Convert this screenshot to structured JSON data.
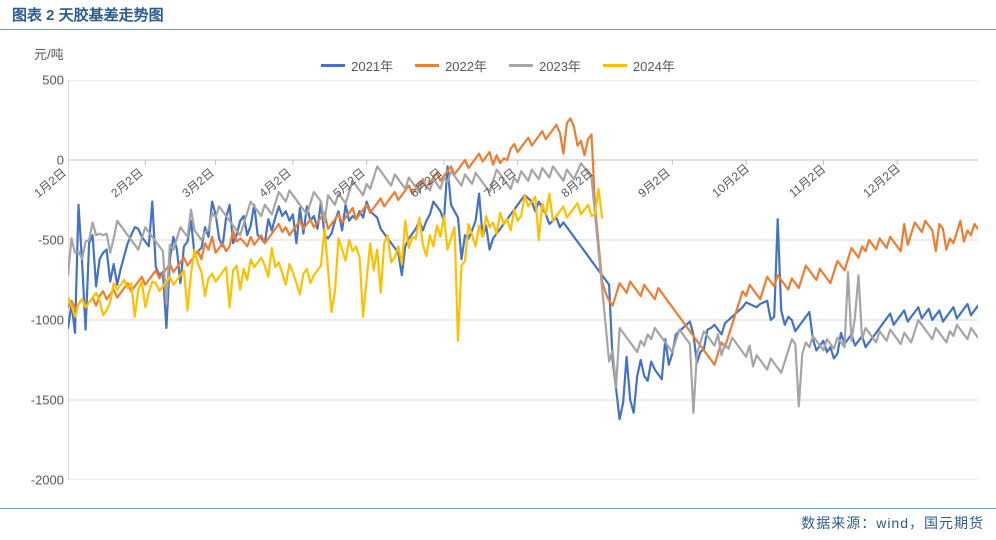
{
  "title": "图表 2 天胶基差走势图",
  "source": "数据来源：wind，国元期货",
  "chart": {
    "type": "line",
    "y_unit": "元/吨",
    "background_color": "#ffffff",
    "grid_color": "#d9d9d9",
    "axis_color": "#bfbfbf",
    "tick_font_color": "#595959",
    "title_color": "#2e5c8a",
    "border_color": "#7f9db9",
    "ylim": [
      -2000,
      500
    ],
    "yticks": [
      -2000,
      -1500,
      -1000,
      -500,
      0,
      500
    ],
    "xticks_labels": [
      "1月2日",
      "2月2日",
      "3月2日",
      "4月2日",
      "5月2日",
      "6月2日",
      "7月2日",
      "8月2日",
      "9月2日",
      "10月2日",
      "11月2日",
      "12月2日"
    ],
    "xticks_pos": [
      0,
      22,
      42,
      64,
      85,
      107,
      128,
      150,
      172,
      193,
      215,
      236
    ],
    "n_points": 260,
    "line_width": 2.2,
    "legend_position": "top-center",
    "series": [
      {
        "name": "2021年",
        "color": "#4472c4",
        "data": [
          -1050,
          -900,
          -1080,
          -280,
          -640,
          -1060,
          -520,
          -470,
          -790,
          -620,
          -580,
          -560,
          -760,
          -650,
          -780,
          -680,
          -600,
          -520,
          -470,
          -420,
          -430,
          -480,
          -510,
          -540,
          -260,
          -670,
          -720,
          -700,
          -1050,
          -620,
          -480,
          -560,
          -770,
          -540,
          -510,
          -380,
          -590,
          -570,
          -550,
          -420,
          -480,
          -260,
          -340,
          -490,
          -540,
          -360,
          -280,
          -520,
          -470,
          -380,
          -350,
          -470,
          -410,
          -280,
          -470,
          -490,
          -520,
          -370,
          -440,
          -360,
          -290,
          -350,
          -320,
          -380,
          -340,
          -520,
          -300,
          -460,
          -290,
          -380,
          -350,
          -430,
          -260,
          -470,
          -490,
          -460,
          -380,
          -320,
          -440,
          -280,
          -380,
          -350,
          -370,
          -320,
          -360,
          -260,
          -320,
          -340,
          -360,
          -430,
          -460,
          -490,
          -520,
          -550,
          -580,
          -720,
          -540,
          -490,
          -460,
          -430,
          -380,
          -440,
          -380,
          -340,
          -260,
          -290,
          -320,
          -380,
          -40,
          -280,
          -320,
          -360,
          -620,
          -470,
          -490,
          -440,
          -380,
          -210,
          -480,
          -410,
          -560,
          -490,
          -460,
          -430,
          -400,
          -370,
          -340,
          -310,
          -280,
          -250,
          -220,
          -240,
          -260,
          -320,
          -260,
          -300,
          -340,
          -400,
          -380,
          -360,
          -420,
          -390,
          -420,
          -450,
          -480,
          -510,
          -540,
          -570,
          -600,
          -630,
          -660,
          -690,
          -720,
          -750,
          -780,
          -1250,
          -1430,
          -1620,
          -1520,
          -1230,
          -1500,
          -1580,
          -1350,
          -1250,
          -1350,
          -1380,
          -1260,
          -1310,
          -1340,
          -1370,
          -1120,
          -1280,
          -1210,
          -1090,
          -1070,
          -1050,
          -1030,
          -1010,
          -1090,
          -1270,
          -1200,
          -1180,
          -1060,
          -1050,
          -1030,
          -1060,
          -1090,
          -1020,
          -1000,
          -980,
          -960,
          -940,
          -920,
          -890,
          -900,
          -910,
          -920,
          -900,
          -890,
          -880,
          -1000,
          -980,
          -370,
          -940,
          -1030,
          -980,
          -1000,
          -1070,
          -1040,
          -1010,
          -980,
          -950,
          -1120,
          -1190,
          -1160,
          -1130,
          -1200,
          -1170,
          -1240,
          -1210,
          -1080,
          -1150,
          -1120,
          -1090,
          -1160,
          -1130,
          -1100,
          -1170,
          -1140,
          -1110,
          -1080,
          -1050,
          -1020,
          -990,
          -960,
          -1030,
          -1000,
          -970,
          -940,
          -1010,
          -980,
          -950,
          -920,
          -990,
          -960,
          -930,
          -1000,
          -970,
          -940,
          -1010,
          -980,
          -950,
          -920,
          -990,
          -960,
          -930,
          -900,
          -970,
          -940,
          -910,
          -980
        ]
      },
      {
        "name": "2022年",
        "color": "#ed7d31",
        "data": [
          -920,
          -880,
          -930,
          -900,
          -870,
          -920,
          -890,
          -860,
          -910,
          -850,
          -820,
          -870,
          -840,
          -810,
          -860,
          -830,
          -800,
          -770,
          -820,
          -790,
          -760,
          -730,
          -780,
          -750,
          -720,
          -690,
          -740,
          -710,
          -680,
          -650,
          -700,
          -670,
          -640,
          -610,
          -660,
          -630,
          -600,
          -570,
          -620,
          -520,
          -560,
          -480,
          -580,
          -550,
          -520,
          -570,
          -540,
          -440,
          -510,
          -490,
          -510,
          -540,
          -480,
          -530,
          -500,
          -470,
          -520,
          -490,
          -460,
          -430,
          -400,
          -450,
          -420,
          -470,
          -440,
          -410,
          -380,
          -430,
          -400,
          -370,
          -420,
          -390,
          -360,
          -330,
          -430,
          -400,
          -370,
          -340,
          -390,
          -360,
          -330,
          -300,
          -370,
          -340,
          -310,
          -280,
          -330,
          -300,
          -270,
          -240,
          -290,
          -260,
          -230,
          -200,
          -250,
          -220,
          -190,
          -160,
          -210,
          -180,
          -150,
          -120,
          -170,
          -140,
          -110,
          -80,
          -130,
          -100,
          -70,
          -40,
          -90,
          -60,
          -30,
          0,
          -50,
          -20,
          10,
          40,
          -10,
          20,
          50,
          -30,
          30,
          -20,
          10,
          0,
          70,
          100,
          50,
          80,
          110,
          140,
          90,
          120,
          150,
          180,
          130,
          160,
          190,
          220,
          170,
          40,
          230,
          260,
          210,
          90,
          120,
          30,
          130,
          160,
          -280,
          -520,
          -760,
          -830,
          -880,
          -910,
          -840,
          -770,
          -800,
          -830,
          -760,
          -790,
          -820,
          -850,
          -780,
          -810,
          -840,
          -870,
          -800,
          -830,
          -860,
          -890,
          -920,
          -950,
          -980,
          -1010,
          -1040,
          -1070,
          -1100,
          -1130,
          -1160,
          -1190,
          -1220,
          -1250,
          -1280,
          -1210,
          -1140,
          -1170,
          -1100,
          -1030,
          -960,
          -890,
          -820,
          -850,
          -780,
          -810,
          -840,
          -870,
          -800,
          -730,
          -760,
          -790,
          -720,
          -750,
          -780,
          -810,
          -740,
          -770,
          -800,
          -730,
          -660,
          -690,
          -720,
          -750,
          -680,
          -710,
          -740,
          -770,
          -700,
          -630,
          -660,
          -690,
          -620,
          -550,
          -580,
          -610,
          -540,
          -570,
          -500,
          -530,
          -560,
          -490,
          -520,
          -550,
          -480,
          -510,
          -540,
          -570,
          -400,
          -530,
          -460,
          -390,
          -420,
          -450,
          -380,
          -410,
          -440,
          -570,
          -400,
          -430,
          -560,
          -490,
          -520,
          -450,
          -380,
          -510,
          -440,
          -470,
          -400,
          -430,
          -460
        ]
      },
      {
        "name": "2023年",
        "color": "#a5a5a5",
        "data": [
          -720,
          -490,
          -580,
          -570,
          -620,
          -510,
          -500,
          -390,
          -470,
          -460,
          -470,
          -460,
          -580,
          -490,
          -380,
          -410,
          -440,
          -470,
          -500,
          -530,
          -560,
          -490,
          -420,
          -450,
          -480,
          -510,
          -540,
          -570,
          -900,
          -530,
          -560,
          -490,
          -420,
          -450,
          -480,
          -310,
          -440,
          -470,
          -500,
          -450,
          -440,
          -330,
          -360,
          -290,
          -320,
          -350,
          -380,
          -410,
          -440,
          -470,
          -400,
          -330,
          -260,
          -290,
          -320,
          -350,
          -280,
          -310,
          -340,
          -270,
          -200,
          -230,
          -260,
          -190,
          -220,
          -250,
          -280,
          -310,
          -340,
          -270,
          -200,
          -230,
          -260,
          -390,
          -220,
          -250,
          -280,
          -210,
          -240,
          -270,
          -200,
          -130,
          -160,
          -190,
          -220,
          -150,
          -180,
          -110,
          -40,
          -70,
          -100,
          -130,
          -160,
          -90,
          -120,
          -150,
          -180,
          -110,
          -140,
          -170,
          -200,
          -130,
          -160,
          -190,
          -120,
          -150,
          -180,
          -110,
          -140,
          -70,
          -100,
          -130,
          -160,
          -90,
          -120,
          -150,
          -80,
          -110,
          -140,
          -170,
          -200,
          -130,
          -60,
          -90,
          -120,
          -150,
          -180,
          -110,
          -140,
          -70,
          -100,
          -130,
          -60,
          -90,
          -120,
          -50,
          -80,
          -110,
          -40,
          -70,
          -100,
          -130,
          -60,
          -90,
          -120,
          -70,
          -20,
          -50,
          -80,
          -110,
          -340,
          -570,
          -800,
          -1030,
          -1260,
          -1190,
          -1420,
          -1050,
          -1080,
          -1110,
          -1140,
          -1170,
          -1200,
          -1130,
          -1160,
          -1090,
          -1120,
          -1050,
          -1080,
          -1110,
          -1140,
          -1170,
          -1200,
          -1130,
          -1060,
          -1090,
          -1120,
          -1150,
          -1580,
          -1210,
          -1140,
          -1070,
          -1100,
          -1130,
          -1160,
          -1090,
          -1220,
          -1150,
          -1180,
          -1110,
          -1140,
          -1170,
          -1200,
          -1230,
          -1160,
          -1290,
          -1220,
          -1250,
          -1280,
          -1310,
          -1240,
          -1270,
          -1300,
          -1330,
          -1260,
          -1190,
          -1120,
          -1150,
          -1540,
          -1210,
          -1140,
          -1170,
          -1100,
          -1130,
          -1160,
          -1190,
          -1120,
          -1150,
          -1180,
          -1110,
          -1140,
          -1170,
          -700,
          -1130,
          -980,
          -720,
          -1120,
          -1050,
          -1080,
          -1110,
          -1140,
          -1070,
          -1100,
          -1130,
          -1060,
          -1090,
          -1120,
          -1150,
          -1080,
          -1110,
          -1140,
          -1070,
          -1000,
          -1030,
          -1060,
          -1090,
          -1120,
          -1050,
          -1080,
          -1110,
          -1140,
          -1070,
          -1100,
          -1030,
          -1060,
          -1090,
          -1120,
          -1050,
          -1080,
          -1110
        ]
      },
      {
        "name": "2024年",
        "color": "#ffc000",
        "data": [
          -860,
          -910,
          -980,
          -900,
          -870,
          -920,
          -890,
          -860,
          -830,
          -880,
          -970,
          -940,
          -890,
          -770,
          -810,
          -780,
          -750,
          -800,
          -770,
          -980,
          -810,
          -760,
          -920,
          -830,
          -760,
          -770,
          -820,
          -790,
          -760,
          -730,
          -780,
          -750,
          -720,
          -690,
          -940,
          -710,
          -560,
          -650,
          -700,
          -850,
          -740,
          -710,
          -760,
          -730,
          -700,
          -670,
          -920,
          -690,
          -660,
          -810,
          -680,
          -750,
          -620,
          -670,
          -640,
          -610,
          -660,
          -730,
          -550,
          -670,
          -640,
          -710,
          -780,
          -650,
          -700,
          -770,
          -840,
          -710,
          -680,
          -770,
          -720,
          -690,
          -660,
          -430,
          -680,
          -950,
          -820,
          -490,
          -560,
          -630,
          -500,
          -570,
          -540,
          -610,
          -980,
          -750,
          -520,
          -690,
          -560,
          -830,
          -520,
          -470,
          -640,
          -610,
          -540,
          -650,
          -380,
          -550,
          -480,
          -490,
          -360,
          -530,
          -600,
          -470,
          -540,
          -410,
          -480,
          -350,
          -560,
          -490,
          -420,
          -1130,
          -660,
          -630,
          -400,
          -470,
          -540,
          -410,
          -480,
          -350,
          -420,
          -390,
          -460,
          -330,
          -400,
          -370,
          -440,
          -310,
          -380,
          -350,
          -220,
          -290,
          -260,
          -230,
          -500,
          -270,
          -340,
          -210,
          -380,
          -350,
          -320,
          -290,
          -360,
          -330,
          -300,
          -270,
          -340,
          -310,
          -280,
          -350,
          -340,
          -180,
          -360
        ]
      }
    ]
  }
}
